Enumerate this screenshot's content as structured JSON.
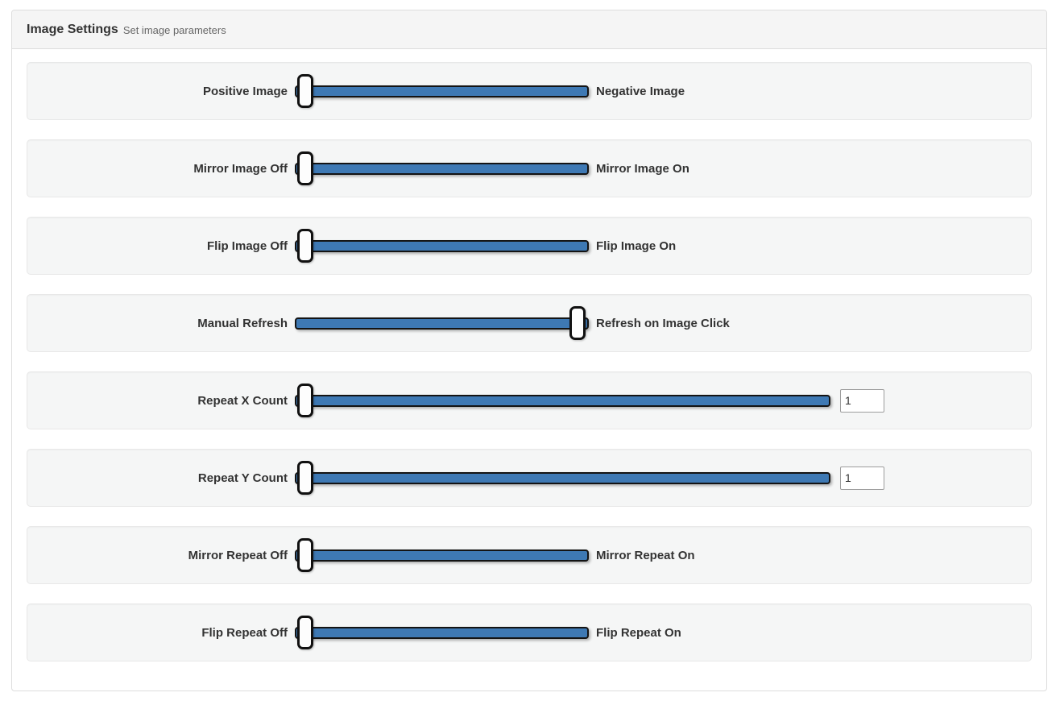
{
  "panel": {
    "title": "Image Settings",
    "subtitle": "Set image parameters"
  },
  "colors": {
    "track_fill": "#3e79b4",
    "track_border": "#141414",
    "handle_fill": "#fdfdfd",
    "row_bg": "#f5f6f6",
    "label": "#333333"
  },
  "rows": [
    {
      "left_label": "Positive Image",
      "right_label": "Negative Image",
      "handle_position": "left"
    },
    {
      "left_label": "Mirror Image Off",
      "right_label": "Mirror Image On",
      "handle_position": "left"
    },
    {
      "left_label": "Flip Image Off",
      "right_label": "Flip Image On",
      "handle_position": "left"
    },
    {
      "left_label": "Manual Refresh",
      "right_label": "Refresh on Image Click",
      "handle_position": "right"
    },
    {
      "left_label": "Repeat X Count",
      "value": "1",
      "handle_position": "left"
    },
    {
      "left_label": "Repeat Y Count",
      "value": "1",
      "handle_position": "left"
    },
    {
      "left_label": "Mirror Repeat Off",
      "right_label": "Mirror Repeat On",
      "handle_position": "left"
    },
    {
      "left_label": "Flip Repeat Off",
      "right_label": "Flip Repeat On",
      "handle_position": "left"
    }
  ]
}
